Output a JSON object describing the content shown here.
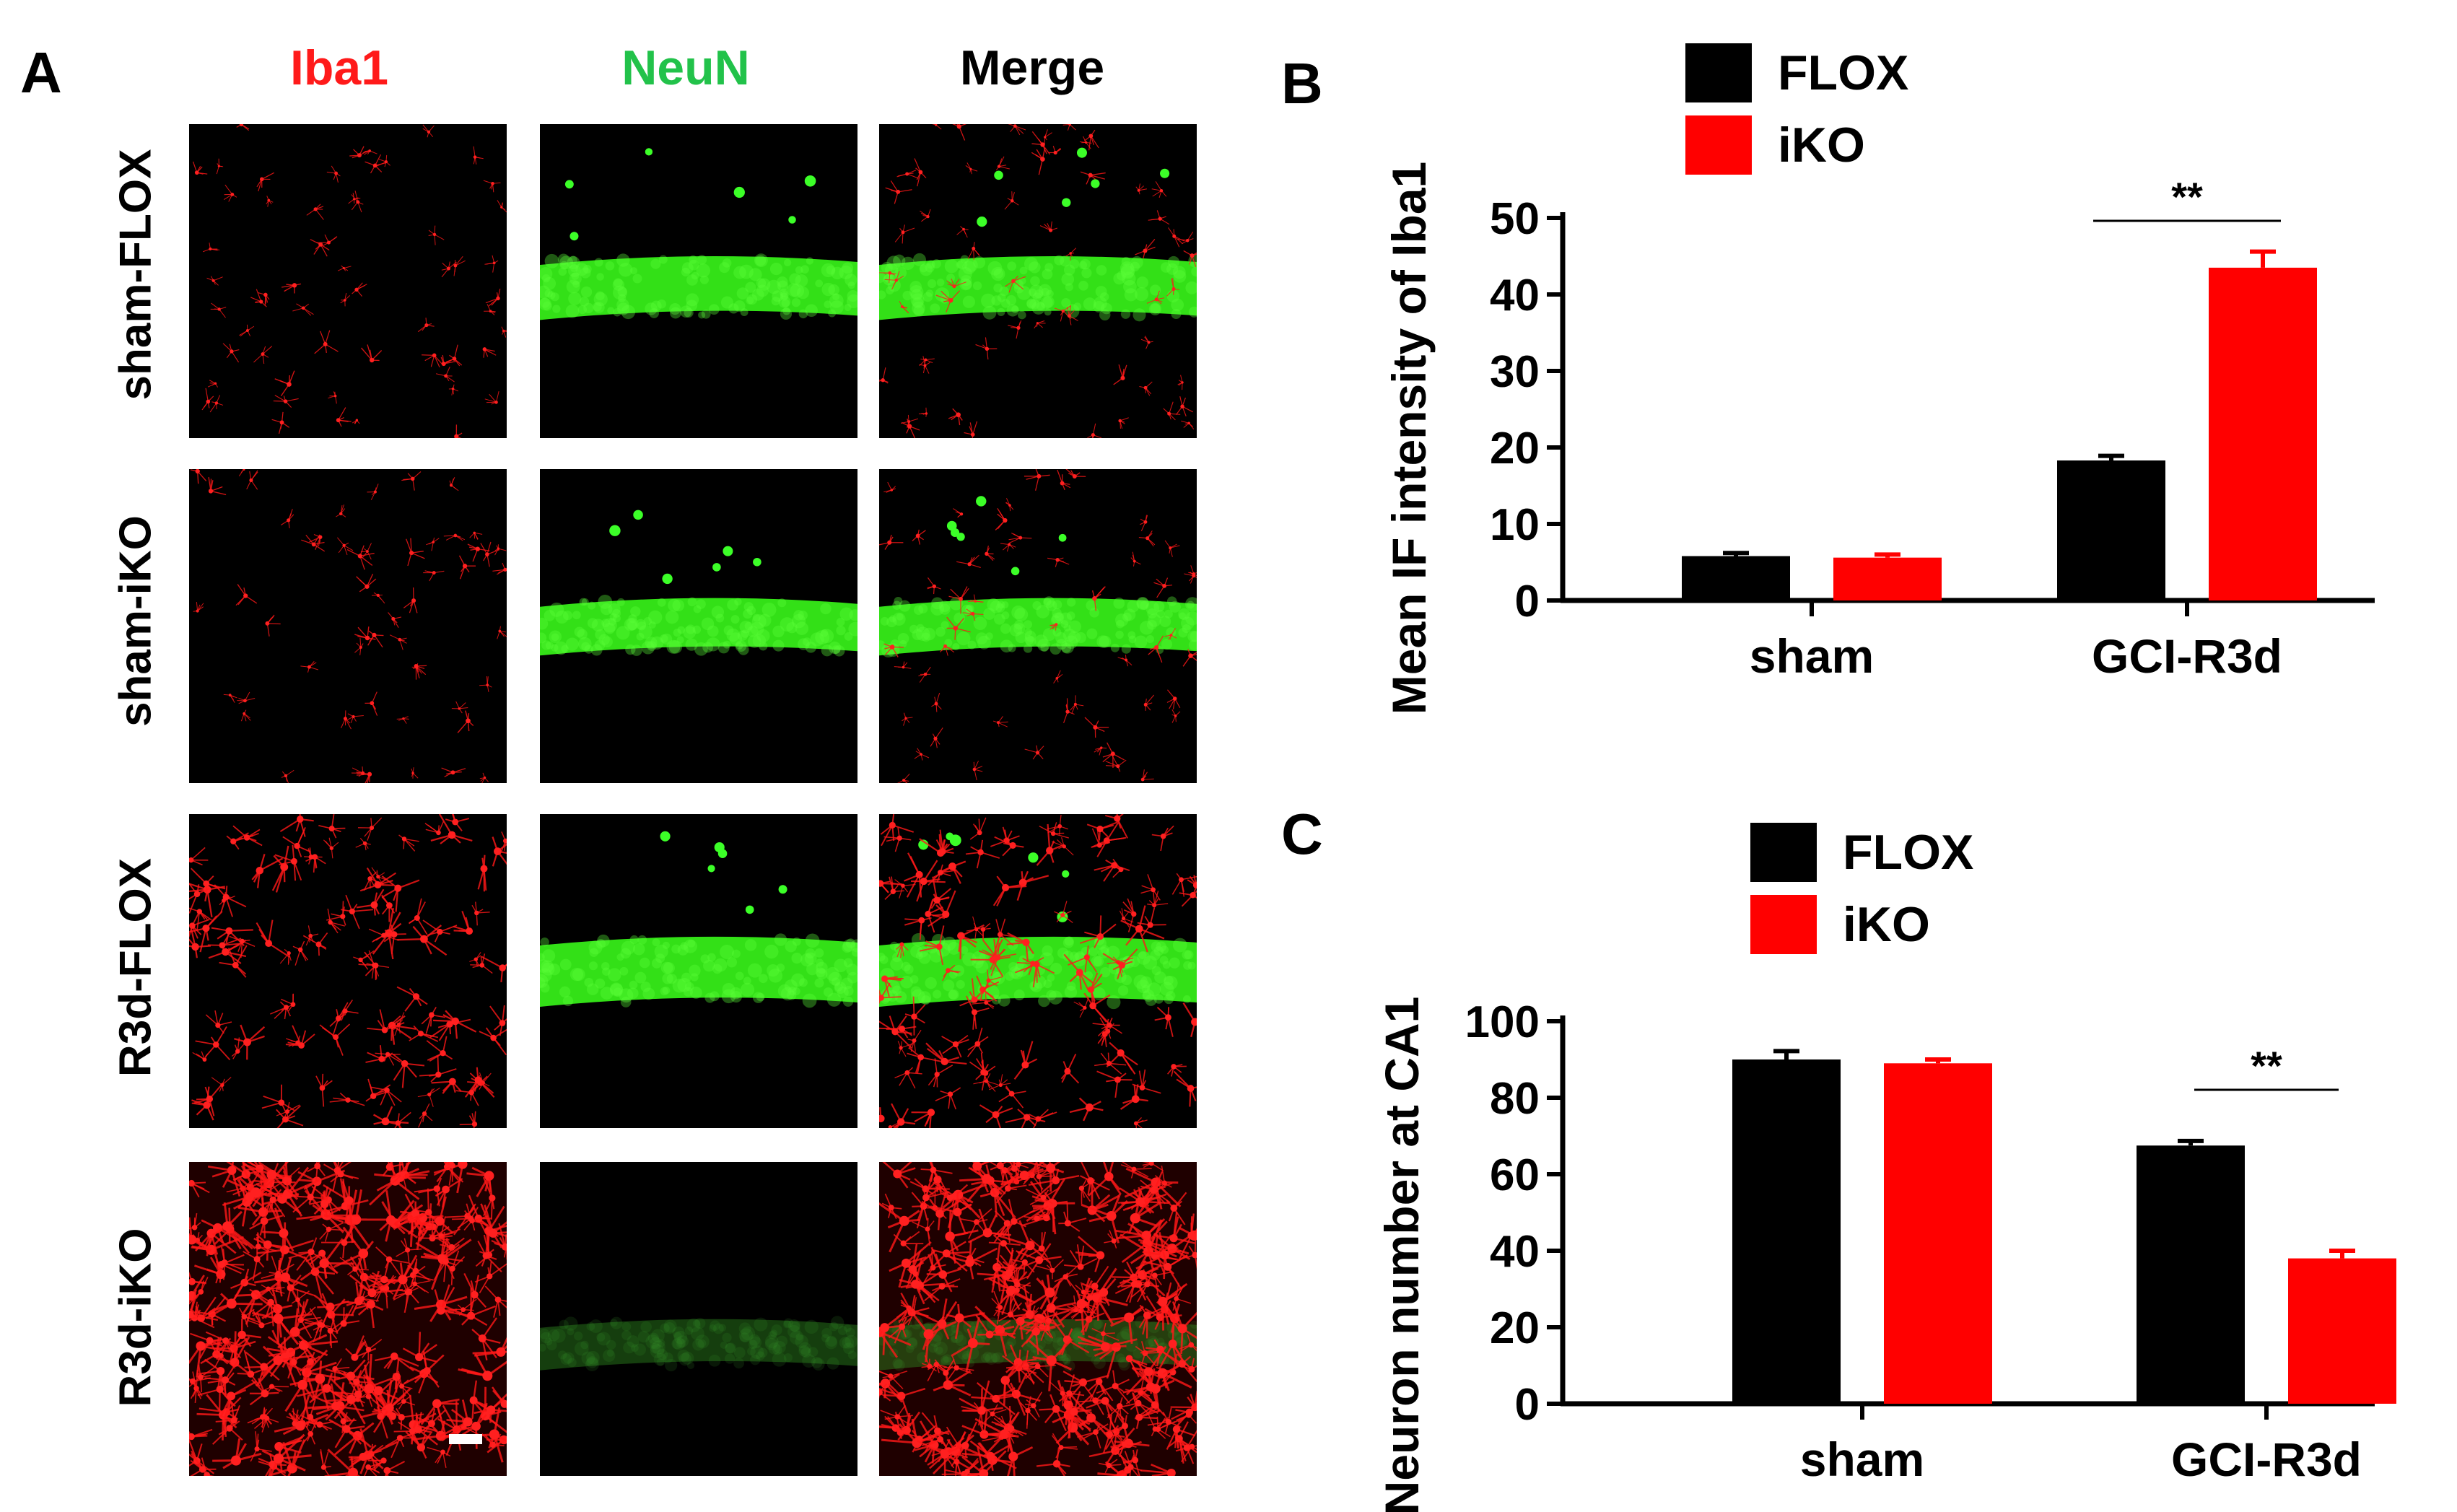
{
  "panels": {
    "A": {
      "letter": "A",
      "columns": [
        "Iba1",
        "NeuN",
        "Merge"
      ],
      "rows": [
        "sham-FLOX",
        "sham-iKO",
        "R3d-FLOX",
        "R3d-iKO"
      ],
      "colors": {
        "iba1": "#ff1a1a",
        "neun": "#22c24a",
        "merge": "#000000"
      }
    },
    "B": {
      "letter": "B"
    },
    "C": {
      "letter": "C"
    }
  },
  "chart_data": [
    {
      "type": "bar",
      "panel": "B",
      "categories": [
        "sham",
        "GCI-R3d"
      ],
      "series": [
        {
          "name": "FLOX",
          "color": "#000000",
          "values": [
            5.8,
            18.3
          ],
          "errors": [
            0.4,
            0.6
          ]
        },
        {
          "name": "iKO",
          "color": "#ff0000",
          "values": [
            5.6,
            43.5
          ],
          "errors": [
            0.4,
            2.1
          ]
        }
      ],
      "ylabel": "Mean IF intensity of Iba1",
      "ylim": [
        0,
        50
      ],
      "yticks": [
        0,
        10,
        20,
        30,
        40,
        50
      ],
      "significance": {
        "label": "**",
        "category": "GCI-R3d"
      },
      "legend": "top-left",
      "grid": false
    },
    {
      "type": "bar",
      "panel": "C",
      "categories": [
        "sham",
        "GCI-R3d"
      ],
      "series": [
        {
          "name": "FLOX",
          "color": "#000000",
          "values": [
            90,
            67.5
          ],
          "errors": [
            2.2,
            1.2
          ]
        },
        {
          "name": "iKO",
          "color": "#ff0000",
          "values": [
            89,
            38
          ],
          "errors": [
            1.0,
            2.0
          ]
        }
      ],
      "ylabel": "Neuron number at CA1",
      "ylim": [
        0,
        100
      ],
      "yticks": [
        0,
        20,
        40,
        60,
        80,
        100
      ],
      "significance": {
        "label": "**",
        "category": "GCI-R3d"
      },
      "legend": "top-left",
      "grid": false
    }
  ]
}
